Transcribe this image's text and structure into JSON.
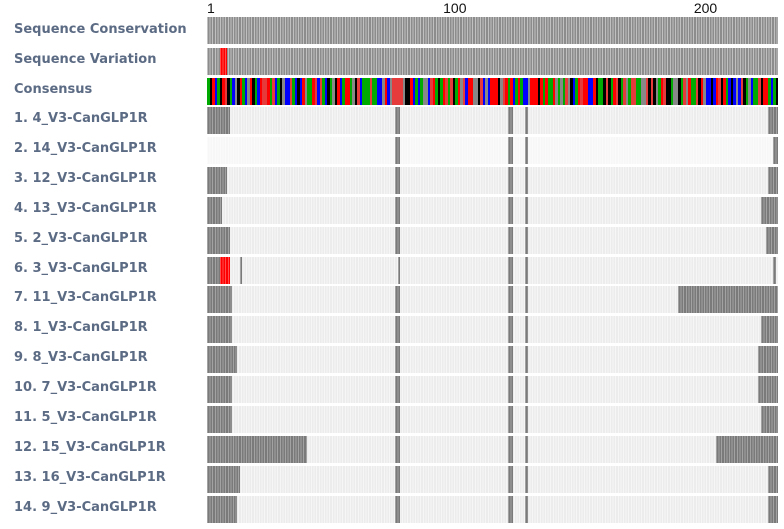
{
  "ruler": {
    "ticks": [
      {
        "label": "1",
        "pos": 1
      },
      {
        "label": "100",
        "pos": 100
      },
      {
        "label": "200",
        "pos": 200
      }
    ],
    "total_positions": 228
  },
  "colors": {
    "block": "#7a7a7a",
    "mismatch": "#ff0000",
    "consensus": [
      "#ff0000",
      "#0000ff",
      "#00aa00",
      "#000000",
      "#888888",
      "#e63b3b"
    ]
  },
  "tracks": {
    "conservation": {
      "label": "Sequence Conservation"
    },
    "variation": {
      "label": "Sequence Variation",
      "mismatch_ranges": [
        [
          6,
          8
        ]
      ]
    },
    "consensus": {
      "label": "Consensus"
    }
  },
  "sequences": [
    {
      "label": "1. 4_V3-CanGLP1R",
      "blocks": [
        [
          1,
          9
        ],
        [
          76,
          77
        ],
        [
          121,
          122
        ],
        [
          128,
          128
        ],
        [
          225,
          228
        ]
      ],
      "mismatch": []
    },
    {
      "label": "2. 14_V3-CanGLP1R",
      "blocks": [
        [
          76,
          77
        ],
        [
          121,
          122
        ],
        [
          128,
          128
        ],
        [
          227,
          228
        ]
      ],
      "mismatch": []
    },
    {
      "label": "3. 12_V3-CanGLP1R",
      "blocks": [
        [
          1,
          8
        ],
        [
          76,
          77
        ],
        [
          121,
          122
        ],
        [
          128,
          128
        ],
        [
          225,
          228
        ]
      ],
      "mismatch": []
    },
    {
      "label": "4. 13_V3-CanGLP1R",
      "blocks": [
        [
          1,
          6
        ],
        [
          76,
          77
        ],
        [
          121,
          122
        ],
        [
          128,
          128
        ],
        [
          222,
          228
        ]
      ],
      "mismatch": []
    },
    {
      "label": "5. 2_V3-CanGLP1R",
      "blocks": [
        [
          1,
          9
        ],
        [
          76,
          77
        ],
        [
          121,
          122
        ],
        [
          128,
          128
        ],
        [
          224,
          228
        ]
      ],
      "mismatch": []
    },
    {
      "label": "6. 3_V3-CanGLP1R",
      "blocks": [
        [
          1,
          9
        ],
        [
          14,
          14
        ],
        [
          77,
          77
        ],
        [
          121,
          122
        ],
        [
          128,
          128
        ],
        [
          227,
          227
        ]
      ],
      "mismatch": [
        [
          6,
          9
        ]
      ]
    },
    {
      "label": "7. 11_V3-CanGLP1R",
      "blocks": [
        [
          1,
          10
        ],
        [
          76,
          77
        ],
        [
          121,
          122
        ],
        [
          128,
          128
        ],
        [
          189,
          228
        ]
      ],
      "mismatch": []
    },
    {
      "label": "8. 1_V3-CanGLP1R",
      "blocks": [
        [
          1,
          10
        ],
        [
          76,
          77
        ],
        [
          121,
          122
        ],
        [
          128,
          128
        ],
        [
          222,
          228
        ]
      ],
      "mismatch": []
    },
    {
      "label": "9. 8_V3-CanGLP1R",
      "blocks": [
        [
          1,
          12
        ],
        [
          76,
          77
        ],
        [
          121,
          122
        ],
        [
          128,
          128
        ],
        [
          221,
          228
        ]
      ],
      "mismatch": []
    },
    {
      "label": "10. 7_V3-CanGLP1R",
      "blocks": [
        [
          1,
          10
        ],
        [
          76,
          77
        ],
        [
          121,
          122
        ],
        [
          128,
          128
        ],
        [
          221,
          228
        ]
      ],
      "mismatch": []
    },
    {
      "label": "11. 5_V3-CanGLP1R",
      "blocks": [
        [
          1,
          10
        ],
        [
          76,
          77
        ],
        [
          121,
          122
        ],
        [
          128,
          128
        ],
        [
          222,
          228
        ]
      ],
      "mismatch": []
    },
    {
      "label": "12. 15_V3-CanGLP1R",
      "blocks": [
        [
          1,
          40
        ],
        [
          76,
          77
        ],
        [
          121,
          122
        ],
        [
          128,
          128
        ],
        [
          204,
          228
        ]
      ],
      "mismatch": []
    },
    {
      "label": "13. 16_V3-CanGLP1R",
      "blocks": [
        [
          1,
          13
        ],
        [
          76,
          77
        ],
        [
          121,
          122
        ],
        [
          128,
          128
        ],
        [
          225,
          228
        ]
      ],
      "mismatch": []
    },
    {
      "label": "14. 9_V3-CanGLP1R",
      "blocks": [
        [
          1,
          12
        ],
        [
          76,
          77
        ],
        [
          121,
          122
        ],
        [
          128,
          128
        ],
        [
          225,
          228
        ]
      ],
      "mismatch": []
    }
  ]
}
